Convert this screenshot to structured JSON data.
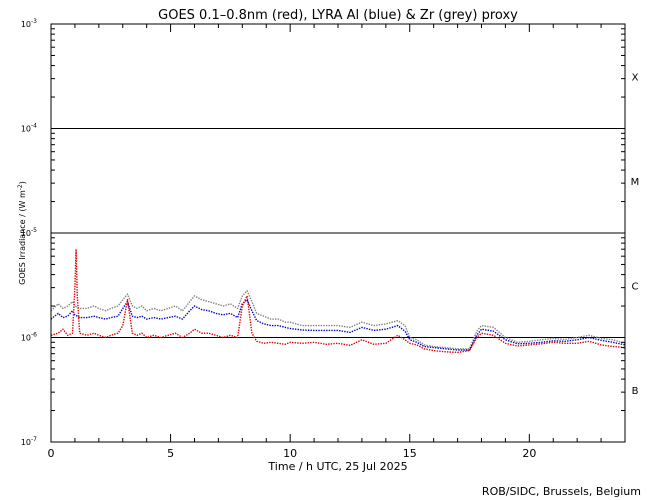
{
  "chart_data": {
    "type": "line",
    "title": "GOES 0.1–0.8nm (red), LYRA Al (blue) & Zr (grey) proxy",
    "xlabel": "Time / h UTC, 25 Jul 2025",
    "ylabel_main": "GOES Irradiance / (W m",
    "ylabel_sup": "-2",
    "ylabel_end": ")",
    "credit": "ROB/SIDC, Brussels, Belgium",
    "xlim": [
      0,
      24
    ],
    "ylim": [
      1e-07,
      0.001
    ],
    "yscale": "log",
    "x_ticks": [
      {
        "value": 0,
        "label": "0"
      },
      {
        "value": 5,
        "label": "5"
      },
      {
        "value": 10,
        "label": "10"
      },
      {
        "value": 15,
        "label": "15"
      },
      {
        "value": 20,
        "label": "20"
      }
    ],
    "y_ticks": [
      {
        "value": 1e-07,
        "base": "10",
        "exp": "-7"
      },
      {
        "value": 1e-06,
        "base": "10",
        "exp": "-6"
      },
      {
        "value": 1e-05,
        "base": "10",
        "exp": "-5"
      },
      {
        "value": 0.0001,
        "base": "10",
        "exp": "-4"
      },
      {
        "value": 0.001,
        "base": "10",
        "exp": "-3"
      }
    ],
    "flare_class_lines": [
      1e-06,
      1e-05,
      0.0001
    ],
    "flare_classes": [
      {
        "label": "B",
        "center": 3.16e-07
      },
      {
        "label": "C",
        "center": 3.16e-06
      },
      {
        "label": "M",
        "center": 3.16e-05
      },
      {
        "label": "X",
        "center": 0.000316
      }
    ],
    "series": [
      {
        "color": "#808080",
        "x": [
          0,
          0.3,
          0.5,
          0.7,
          0.9,
          1.0,
          1.2,
          1.5,
          1.8,
          2.0,
          2.3,
          2.5,
          2.8,
          3.0,
          3.2,
          3.4,
          3.6,
          3.8,
          4.0,
          4.3,
          4.6,
          4.9,
          5.2,
          5.5,
          5.8,
          6.0,
          6.3,
          6.6,
          6.9,
          7.2,
          7.5,
          7.8,
          8.0,
          8.2,
          8.4,
          8.6,
          8.9,
          9.2,
          9.5,
          9.8,
          10.0,
          10.5,
          11.0,
          11.5,
          12.0,
          12.5,
          13.0,
          13.5,
          14.0,
          14.5,
          14.8,
          15.0,
          15.3,
          15.6,
          16.0,
          16.5,
          17.0,
          17.5,
          17.8,
          18.0,
          18.5,
          19.0,
          19.5,
          20.0,
          20.5,
          21.0,
          21.5,
          22.0,
          22.5,
          23.0,
          23.5,
          24.0
        ],
        "y": [
          1.8e-06,
          2.1e-06,
          1.9e-06,
          2e-06,
          2.2e-06,
          2e-06,
          1.9e-06,
          1.9e-06,
          2e-06,
          1.9e-06,
          1.8e-06,
          1.9e-06,
          2e-06,
          2.3e-06,
          2.6e-06,
          2e-06,
          1.9e-06,
          2e-06,
          1.8e-06,
          1.9e-06,
          1.8e-06,
          1.9e-06,
          2e-06,
          1.8e-06,
          2.2e-06,
          2.5e-06,
          2.3e-06,
          2.2e-06,
          2.1e-06,
          2e-06,
          2.1e-06,
          1.9e-06,
          2.5e-06,
          2.8e-06,
          2.2e-06,
          1.7e-06,
          1.6e-06,
          1.5e-06,
          1.5e-06,
          1.4e-06,
          1.4e-06,
          1.3e-06,
          1.3e-06,
          1.3e-06,
          1.3e-06,
          1.25e-06,
          1.4e-06,
          1.3e-06,
          1.35e-06,
          1.45e-06,
          1.3e-06,
          1e-06,
          9.5e-07,
          8.5e-07,
          8.2e-07,
          8e-07,
          7.8e-07,
          7.8e-07,
          1.15e-06,
          1.3e-06,
          1.25e-06,
          1e-06,
          9e-07,
          9.2e-07,
          9.5e-07,
          9.8e-07,
          9.6e-07,
          1e-06,
          1.05e-06,
          9.8e-07,
          9.5e-07,
          8.8e-07
        ]
      },
      {
        "color": "#0000c0",
        "x": [
          0,
          0.3,
          0.5,
          0.7,
          0.9,
          1.0,
          1.2,
          1.5,
          1.8,
          2.0,
          2.3,
          2.5,
          2.8,
          3.0,
          3.2,
          3.4,
          3.6,
          3.8,
          4.0,
          4.3,
          4.6,
          4.9,
          5.2,
          5.5,
          5.8,
          6.0,
          6.3,
          6.6,
          6.9,
          7.2,
          7.5,
          7.8,
          8.0,
          8.2,
          8.4,
          8.6,
          8.9,
          9.2,
          9.5,
          9.8,
          10.0,
          10.5,
          11.0,
          11.5,
          12.0,
          12.5,
          13.0,
          13.5,
          14.0,
          14.5,
          14.8,
          15.0,
          15.3,
          15.6,
          16.0,
          16.5,
          17.0,
          17.5,
          17.8,
          18.0,
          18.5,
          19.0,
          19.5,
          20.0,
          20.5,
          21.0,
          21.5,
          22.0,
          22.5,
          23.0,
          23.5,
          24.0
        ],
        "y": [
          1.5e-06,
          1.7e-06,
          1.55e-06,
          1.6e-06,
          1.8e-06,
          1.65e-06,
          1.55e-06,
          1.55e-06,
          1.6e-06,
          1.55e-06,
          1.5e-06,
          1.55e-06,
          1.6e-06,
          1.9e-06,
          2.2e-06,
          1.6e-06,
          1.55e-06,
          1.6e-06,
          1.5e-06,
          1.55e-06,
          1.5e-06,
          1.55e-06,
          1.6e-06,
          1.5e-06,
          1.8e-06,
          2e-06,
          1.85e-06,
          1.8e-06,
          1.7e-06,
          1.65e-06,
          1.7e-06,
          1.55e-06,
          2.1e-06,
          2.3e-06,
          1.8e-06,
          1.45e-06,
          1.35e-06,
          1.3e-06,
          1.3e-06,
          1.25e-06,
          1.22e-06,
          1.18e-06,
          1.17e-06,
          1.17e-06,
          1.17e-06,
          1.12e-06,
          1.25e-06,
          1.17e-06,
          1.2e-06,
          1.3e-06,
          1.15e-06,
          9.5e-07,
          9e-07,
          8.2e-07,
          8e-07,
          7.8e-07,
          7.6e-07,
          7.6e-07,
          1.05e-06,
          1.2e-06,
          1.15e-06,
          9.5e-07,
          8.7e-07,
          8.8e-07,
          9e-07,
          9.3e-07,
          9.2e-07,
          9.5e-07,
          1e-06,
          9.4e-07,
          9e-07,
          8.5e-07
        ]
      },
      {
        "color": "#dd0000",
        "x": [
          0,
          0.3,
          0.5,
          0.7,
          0.9,
          1.0,
          1.05,
          1.1,
          1.2,
          1.5,
          1.8,
          2.0,
          2.3,
          2.5,
          2.8,
          3.0,
          3.2,
          3.4,
          3.6,
          3.8,
          4.0,
          4.3,
          4.6,
          4.9,
          5.2,
          5.5,
          5.8,
          6.0,
          6.3,
          6.6,
          6.9,
          7.2,
          7.5,
          7.8,
          8.0,
          8.2,
          8.4,
          8.6,
          8.9,
          9.2,
          9.5,
          9.8,
          10.0,
          10.5,
          11.0,
          11.5,
          12.0,
          12.5,
          13.0,
          13.5,
          14.0,
          14.5,
          14.8,
          15.0,
          15.3,
          15.6,
          16.0,
          16.5,
          17.0,
          17.5,
          17.8,
          18.0,
          18.5,
          19.0,
          19.5,
          20.0,
          20.5,
          21.0,
          21.5,
          22.0,
          22.5,
          23.0,
          23.5,
          24.0
        ],
        "y": [
          1.05e-06,
          1.1e-06,
          1.2e-06,
          1.05e-06,
          1.1e-06,
          3e-06,
          7e-06,
          2.5e-06,
          1.1e-06,
          1.05e-06,
          1.1e-06,
          1.05e-06,
          1e-06,
          1.05e-06,
          1.1e-06,
          1.3e-06,
          2.3e-06,
          1.1e-06,
          1.05e-06,
          1.1e-06,
          1e-06,
          1.05e-06,
          1e-06,
          1.05e-06,
          1.1e-06,
          1e-06,
          1.1e-06,
          1.2e-06,
          1.1e-06,
          1.1e-06,
          1.05e-06,
          1e-06,
          1.05e-06,
          1e-06,
          2e-06,
          2.5e-06,
          1.1e-06,
          9.2e-07,
          8.8e-07,
          9e-07,
          8.8e-07,
          8.6e-07,
          9e-07,
          8.8e-07,
          9e-07,
          8.6e-07,
          8.8e-07,
          8.4e-07,
          9.5e-07,
          8.6e-07,
          8.8e-07,
          1.05e-06,
          9.5e-07,
          8.8e-07,
          8.5e-07,
          7.8e-07,
          7.5e-07,
          7.3e-07,
          7.2e-07,
          7.5e-07,
          1e-06,
          1.1e-06,
          1.05e-06,
          8.8e-07,
          8.3e-07,
          8.5e-07,
          8.7e-07,
          9e-07,
          8.8e-07,
          8.8e-07,
          9.2e-07,
          8.5e-07,
          8.2e-07,
          8e-07
        ]
      }
    ]
  }
}
